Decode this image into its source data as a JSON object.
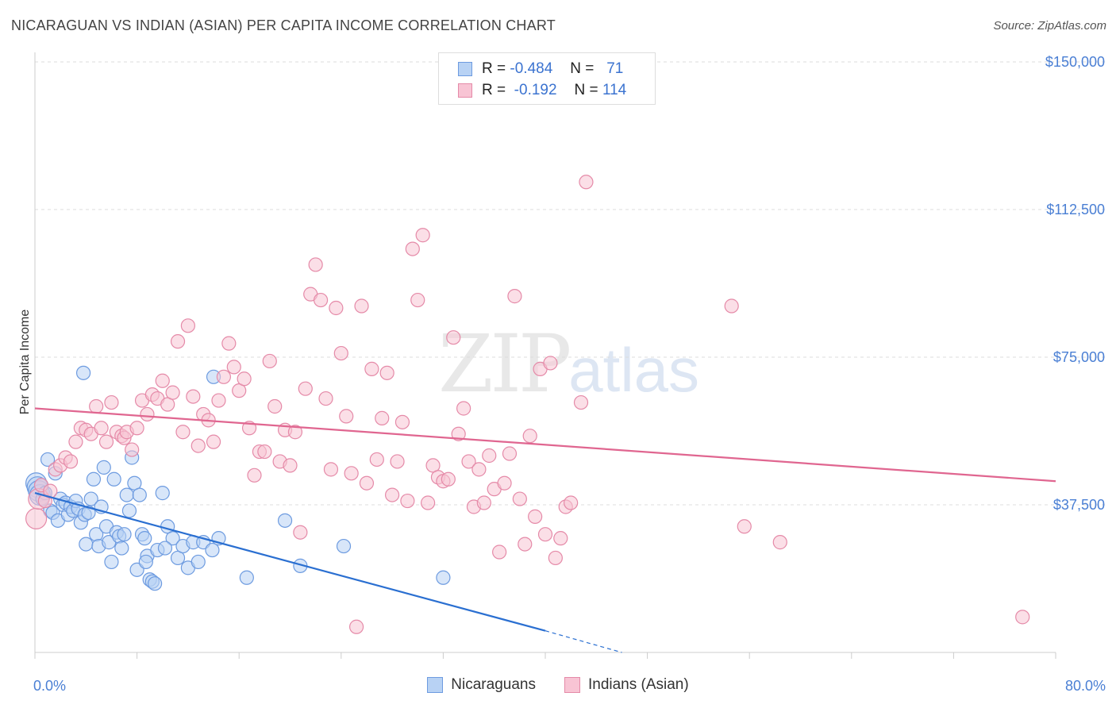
{
  "title": "NICARAGUAN VS INDIAN (ASIAN) PER CAPITA INCOME CORRELATION CHART",
  "source": "Source: ZipAtlas.com",
  "watermark": {
    "zip": "ZIP",
    "atlas": "atlas"
  },
  "legend": {
    "rows": [
      {
        "r_label": "R =",
        "r_value": "-0.484",
        "n_label": "N =",
        "n_value": "71",
        "color": "#b8d2f4",
        "border": "#6d9be0"
      },
      {
        "r_label": "R =",
        "r_value": "-0.192",
        "n_label": "N =",
        "n_value": "114",
        "color": "#f8c4d4",
        "border": "#e58aa8"
      }
    ]
  },
  "bottom_legend": [
    {
      "label": "Nicaraguans",
      "color": "#b8d2f4",
      "border": "#6d9be0"
    },
    {
      "label": "Indians (Asian)",
      "color": "#f8c4d4",
      "border": "#e58aa8"
    }
  ],
  "chart_data": {
    "type": "scatter",
    "title": "NICARAGUAN VS INDIAN (ASIAN) PER CAPITA INCOME CORRELATION CHART",
    "xlabel": "",
    "ylabel": "Per Capita Income",
    "xlim": [
      0,
      80
    ],
    "ylim": [
      0,
      155000
    ],
    "x_tick_labels": [
      {
        "value": 0,
        "label": "0.0%"
      },
      {
        "value": 80,
        "label": "80.0%"
      }
    ],
    "y_ticks": [
      {
        "value": 37500,
        "label": "$37,500"
      },
      {
        "value": 75000,
        "label": "$75,000"
      },
      {
        "value": 112500,
        "label": "$112,500"
      },
      {
        "value": 150000,
        "label": "$150,000"
      }
    ],
    "grid": true,
    "series": [
      {
        "name": "Nicaraguans",
        "color": "#6d9be0",
        "fill": "#b8d2f4",
        "points": [
          [
            0.1,
            43000
          ],
          [
            0.2,
            42000
          ],
          [
            0.3,
            41000
          ],
          [
            0.4,
            40000
          ],
          [
            0.5,
            42500
          ],
          [
            0.6,
            39000
          ],
          [
            0.8,
            40500
          ],
          [
            1.0,
            49000
          ],
          [
            1.2,
            36000
          ],
          [
            1.4,
            35500
          ],
          [
            1.6,
            45500
          ],
          [
            1.8,
            33500
          ],
          [
            2.0,
            39000
          ],
          [
            2.2,
            37500
          ],
          [
            2.4,
            38000
          ],
          [
            2.6,
            35000
          ],
          [
            2.8,
            37000
          ],
          [
            3.0,
            36000
          ],
          [
            3.2,
            38500
          ],
          [
            3.4,
            36500
          ],
          [
            3.6,
            33000
          ],
          [
            3.8,
            71000
          ],
          [
            3.9,
            35000
          ],
          [
            4.0,
            27500
          ],
          [
            4.2,
            35500
          ],
          [
            4.4,
            39000
          ],
          [
            4.6,
            44000
          ],
          [
            4.8,
            30000
          ],
          [
            5.0,
            27000
          ],
          [
            5.2,
            37000
          ],
          [
            5.4,
            47000
          ],
          [
            5.6,
            32000
          ],
          [
            5.8,
            28000
          ],
          [
            6.0,
            23000
          ],
          [
            6.2,
            44000
          ],
          [
            6.4,
            30500
          ],
          [
            6.6,
            29500
          ],
          [
            6.8,
            26500
          ],
          [
            7.0,
            30000
          ],
          [
            7.2,
            40000
          ],
          [
            7.4,
            36000
          ],
          [
            7.6,
            49500
          ],
          [
            7.8,
            43000
          ],
          [
            8.0,
            21000
          ],
          [
            8.2,
            40000
          ],
          [
            8.4,
            30000
          ],
          [
            8.6,
            29000
          ],
          [
            8.8,
            24500
          ],
          [
            9.0,
            18500
          ],
          [
            9.2,
            18000
          ],
          [
            9.4,
            17500
          ],
          [
            9.6,
            26000
          ],
          [
            10.0,
            40500
          ],
          [
            10.4,
            32000
          ],
          [
            10.8,
            29000
          ],
          [
            11.2,
            24000
          ],
          [
            11.6,
            27000
          ],
          [
            12.0,
            21500
          ],
          [
            12.4,
            28000
          ],
          [
            12.8,
            23000
          ],
          [
            13.2,
            28000
          ],
          [
            14.0,
            70000
          ],
          [
            16.6,
            19000
          ],
          [
            19.6,
            33500
          ],
          [
            20.8,
            22000
          ],
          [
            24.2,
            27000
          ],
          [
            32.0,
            19000
          ],
          [
            14.4,
            29000
          ],
          [
            10.2,
            26500
          ],
          [
            8.7,
            23000
          ],
          [
            13.9,
            26000
          ]
        ],
        "trend": {
          "x": [
            0,
            40
          ],
          "y": [
            40500,
            5500
          ],
          "dashed_to": {
            "x": [
              40,
              46
            ],
            "y": [
              5500,
              0
            ]
          }
        }
      },
      {
        "name": "Indians (Asian)",
        "color": "#e58aa8",
        "fill": "#f8c4d4",
        "points": [
          [
            0.1,
            34000
          ],
          [
            0.3,
            39000
          ],
          [
            0.5,
            42500
          ],
          [
            0.8,
            38500
          ],
          [
            1.2,
            41000
          ],
          [
            1.6,
            46500
          ],
          [
            2.0,
            47500
          ],
          [
            2.4,
            49500
          ],
          [
            2.8,
            48500
          ],
          [
            3.2,
            53500
          ],
          [
            3.6,
            57000
          ],
          [
            4.0,
            56500
          ],
          [
            4.4,
            55500
          ],
          [
            4.8,
            62500
          ],
          [
            5.2,
            57000
          ],
          [
            5.6,
            53500
          ],
          [
            6.0,
            63500
          ],
          [
            6.4,
            56000
          ],
          [
            6.8,
            55000
          ],
          [
            7.0,
            54500
          ],
          [
            7.2,
            56000
          ],
          [
            7.6,
            51500
          ],
          [
            8.0,
            57000
          ],
          [
            8.4,
            64000
          ],
          [
            8.8,
            60500
          ],
          [
            9.2,
            65500
          ],
          [
            9.6,
            64500
          ],
          [
            10.0,
            69000
          ],
          [
            10.4,
            63000
          ],
          [
            10.8,
            66000
          ],
          [
            11.2,
            79000
          ],
          [
            11.6,
            56000
          ],
          [
            12.0,
            83000
          ],
          [
            12.4,
            65000
          ],
          [
            12.8,
            52500
          ],
          [
            13.2,
            60500
          ],
          [
            13.6,
            59000
          ],
          [
            14.0,
            53500
          ],
          [
            14.4,
            64000
          ],
          [
            14.8,
            70000
          ],
          [
            15.2,
            78500
          ],
          [
            15.6,
            72500
          ],
          [
            16.0,
            66500
          ],
          [
            16.4,
            69500
          ],
          [
            16.8,
            57000
          ],
          [
            17.2,
            45000
          ],
          [
            17.6,
            51000
          ],
          [
            18.0,
            51000
          ],
          [
            18.4,
            74000
          ],
          [
            18.8,
            62500
          ],
          [
            19.2,
            48500
          ],
          [
            19.6,
            56500
          ],
          [
            20.0,
            47500
          ],
          [
            20.4,
            56000
          ],
          [
            20.8,
            30500
          ],
          [
            21.2,
            67000
          ],
          [
            21.6,
            91000
          ],
          [
            22.0,
            98500
          ],
          [
            22.4,
            89500
          ],
          [
            22.8,
            64500
          ],
          [
            23.2,
            46500
          ],
          [
            23.6,
            87500
          ],
          [
            24.0,
            76000
          ],
          [
            24.4,
            60000
          ],
          [
            24.8,
            45500
          ],
          [
            25.2,
            6500
          ],
          [
            25.6,
            88000
          ],
          [
            26.0,
            43000
          ],
          [
            26.4,
            72000
          ],
          [
            26.8,
            49000
          ],
          [
            27.2,
            59500
          ],
          [
            27.6,
            71000
          ],
          [
            28.0,
            40000
          ],
          [
            28.4,
            48500
          ],
          [
            28.8,
            58500
          ],
          [
            29.2,
            38500
          ],
          [
            29.6,
            102500
          ],
          [
            30.0,
            89500
          ],
          [
            30.4,
            106000
          ],
          [
            30.8,
            38000
          ],
          [
            31.2,
            47500
          ],
          [
            31.6,
            44500
          ],
          [
            32.0,
            43500
          ],
          [
            32.4,
            44000
          ],
          [
            32.8,
            80000
          ],
          [
            33.2,
            55500
          ],
          [
            33.6,
            62000
          ],
          [
            34.0,
            48500
          ],
          [
            34.4,
            37000
          ],
          [
            34.8,
            46500
          ],
          [
            35.2,
            38000
          ],
          [
            35.6,
            50000
          ],
          [
            36.0,
            41500
          ],
          [
            36.4,
            25500
          ],
          [
            36.8,
            43000
          ],
          [
            37.2,
            50500
          ],
          [
            37.6,
            90500
          ],
          [
            38.0,
            39000
          ],
          [
            38.4,
            27500
          ],
          [
            38.8,
            55000
          ],
          [
            39.2,
            34500
          ],
          [
            39.6,
            72000
          ],
          [
            40.0,
            30000
          ],
          [
            40.4,
            73500
          ],
          [
            40.8,
            24000
          ],
          [
            41.2,
            29000
          ],
          [
            41.6,
            37000
          ],
          [
            42.0,
            38000
          ],
          [
            42.8,
            63500
          ],
          [
            43.2,
            119500
          ],
          [
            54.6,
            88000
          ],
          [
            55.6,
            32000
          ],
          [
            58.4,
            28000
          ],
          [
            77.4,
            9000
          ]
        ],
        "trend": {
          "x": [
            0,
            80
          ],
          "y": [
            62000,
            43500
          ]
        }
      }
    ]
  }
}
